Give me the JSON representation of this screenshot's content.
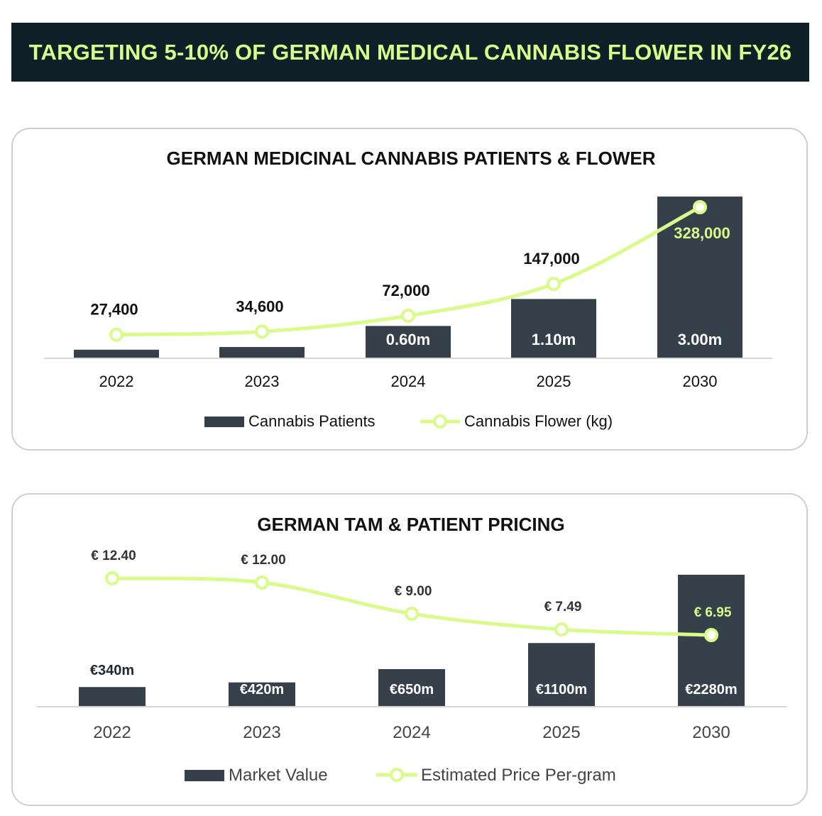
{
  "banner": {
    "title": "TARGETING 5-10% OF GERMAN MEDICAL CANNABIS FLOWER IN FY26"
  },
  "colors": {
    "banner_bg": "#0f2029",
    "accent": "#d8fb8a",
    "bar": "#36404a",
    "text": "#111111"
  },
  "chart_data": [
    {
      "type": "bar",
      "title": "GERMAN MEDICINAL CANNABIS PATIENTS & FLOWER",
      "categories": [
        "2022",
        "2023",
        "2024",
        "2025",
        "2030"
      ],
      "series": [
        {
          "name": "Cannabis Patients",
          "type": "bar",
          "unit": "m",
          "values": [
            0.16,
            0.21,
            0.6,
            1.1,
            3.0
          ],
          "labels": [
            "",
            "",
            "0.60m",
            "1.10m",
            "3.00m"
          ]
        },
        {
          "name": "Cannabis Flower (kg)",
          "type": "line",
          "values": [
            27400,
            34600,
            72000,
            147000,
            328000
          ],
          "labels": [
            "27,400",
            "34,600",
            "72,000",
            "147,000",
            "328,000"
          ]
        }
      ],
      "bar_range": [
        0,
        3.0
      ],
      "line_range": [
        0,
        328000
      ],
      "legend": "bottom"
    },
    {
      "type": "bar",
      "title": "GERMAN TAM & PATIENT PRICING",
      "categories": [
        "2022",
        "2023",
        "2024",
        "2025",
        "2030"
      ],
      "series": [
        {
          "name": "Market Value",
          "type": "bar",
          "unit": "€m",
          "values": [
            340,
            420,
            650,
            1100,
            2280
          ],
          "labels": [
            "€340m",
            "€420m",
            "€650m",
            "€1100m",
            "€2280m"
          ]
        },
        {
          "name": "Estimated Price Per-gram",
          "type": "line",
          "unit": "€",
          "values": [
            12.4,
            12.0,
            9.0,
            7.49,
            6.95
          ],
          "labels": [
            "€ 12.40",
            "€ 12.00",
            "€ 9.00",
            "€ 7.49",
            "€ 6.95"
          ]
        }
      ],
      "bar_range": [
        0,
        2280
      ],
      "line_range": [
        6.95,
        12.4
      ],
      "legend": "bottom"
    }
  ]
}
